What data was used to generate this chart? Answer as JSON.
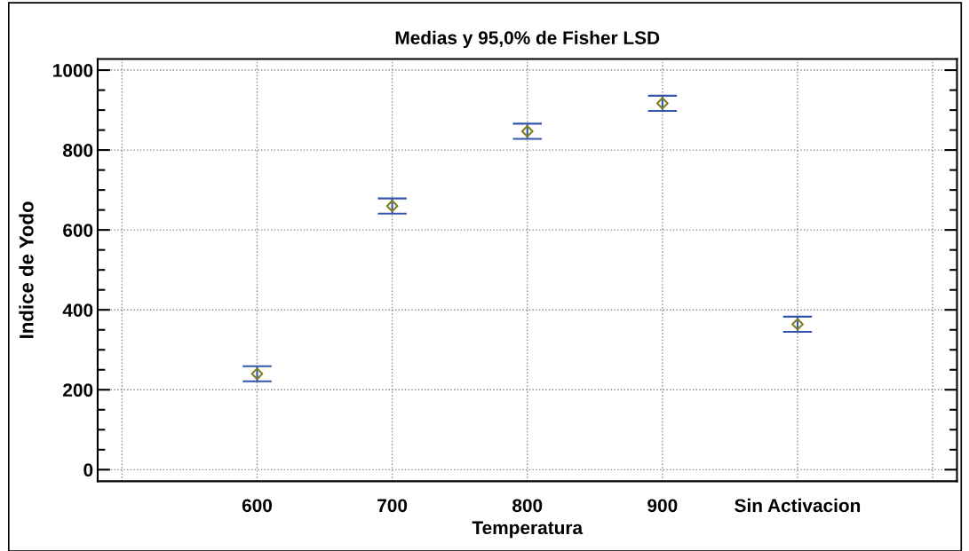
{
  "chart_data": {
    "type": "scatter",
    "title": "Medias y 95,0% de Fisher LSD",
    "xlabel": "Temperatura",
    "ylabel": "Indice de Yodo",
    "categories": [
      "600",
      "700",
      "800",
      "900",
      "Sin Activacion"
    ],
    "values": [
      240,
      660,
      847,
      917,
      364
    ],
    "errors": [
      19,
      19,
      19,
      19,
      19
    ],
    "color": "#3355aa",
    "colors": [
      "#808020",
      "#808020",
      "#808020",
      "#808020",
      "#808020"
    ],
    "ylim": [
      -29,
      1028
    ],
    "yticks": [
      0,
      200,
      400,
      600,
      800,
      1000
    ],
    "grid": true,
    "marker": "diamond"
  }
}
